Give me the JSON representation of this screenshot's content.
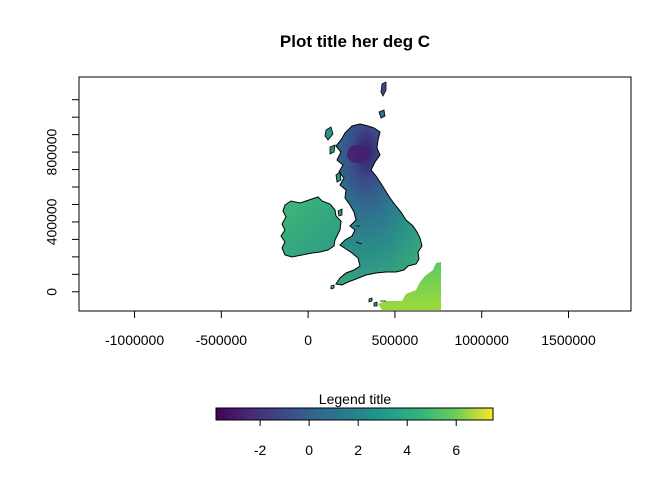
{
  "chart_data": {
    "type": "heatmap",
    "title": "Plot title her deg C",
    "xlabel": "",
    "ylabel": "",
    "x_ticks": [
      -1000000,
      -500000,
      0,
      500000,
      1000000,
      1500000
    ],
    "x_tick_labels": [
      "-1000000",
      "-500000",
      "0",
      "500000",
      "1000000",
      "1500000"
    ],
    "y_ticks": [
      0,
      400000,
      800000
    ],
    "y_tick_labels": [
      "0",
      "400000",
      "800000"
    ],
    "xlim": [
      -1320000,
      1860000
    ],
    "ylim": [
      -110000,
      1230000
    ],
    "colorscale": "viridis",
    "legend": {
      "title": "Legend title",
      "placement": "bottom",
      "range": [
        -3.8,
        7.5
      ],
      "ticks": [
        -2,
        0,
        2,
        4,
        6
      ],
      "tick_labels": [
        "-2",
        "0",
        "2",
        "4",
        "6"
      ]
    },
    "regions": [
      "Great Britain",
      "Ireland",
      "Northern France"
    ]
  }
}
